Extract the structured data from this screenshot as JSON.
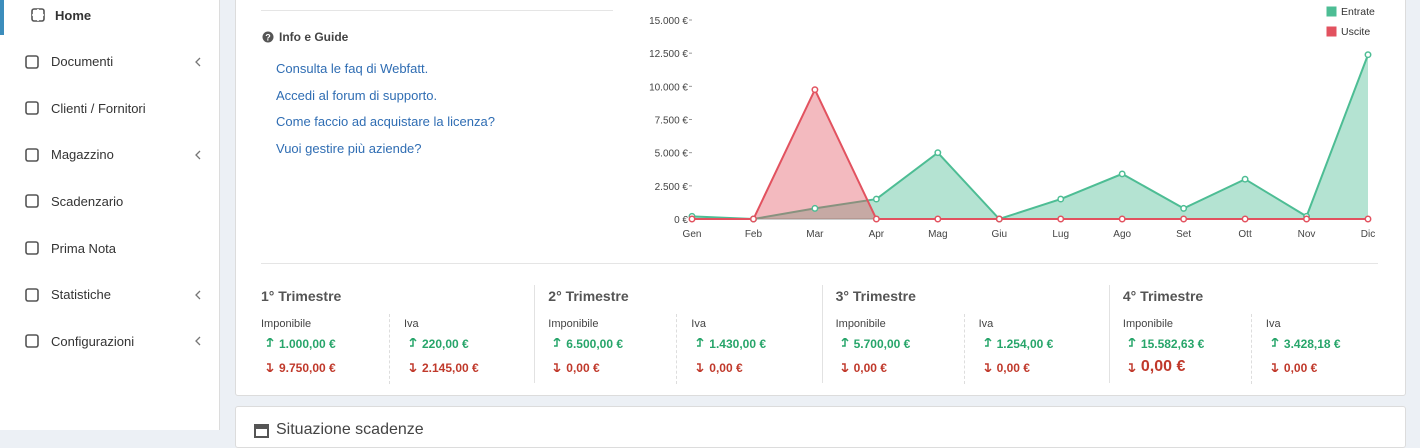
{
  "sidebar": {
    "items": [
      "Home",
      "Documenti",
      "Clienti / Fornitori",
      "Magazzino",
      "Scadenzario",
      "Prima Nota",
      "Statistiche",
      "Configurazioni"
    ]
  },
  "info": {
    "title": "Info e Guide",
    "links": [
      "Consulta le faq di Webfatt.",
      "Accedi al forum di supporto.",
      "Come faccio ad acquistare la licenza?",
      "Vuoi gestire più aziende?"
    ]
  },
  "chart_data": {
    "type": "area",
    "categories": [
      "Gen",
      "Feb",
      "Mar",
      "Apr",
      "Mag",
      "Giu",
      "Lug",
      "Ago",
      "Set",
      "Ott",
      "Nov",
      "Dic"
    ],
    "series": [
      {
        "name": "Entrate",
        "color": "#4dbd94",
        "values": [
          200,
          0,
          800,
          1500,
          5000,
          0,
          1500,
          3400,
          800,
          3000,
          200,
          12382.63
        ]
      },
      {
        "name": "Uscite",
        "color": "#e2525f",
        "values": [
          0,
          0,
          9750,
          0,
          0,
          0,
          0,
          0,
          0,
          0,
          0,
          0
        ]
      }
    ],
    "ylim": [
      0,
      15000
    ],
    "yticks": [
      {
        "value": 0,
        "label": "0 €"
      },
      {
        "value": 2500,
        "label": "2.500 €"
      },
      {
        "value": 5000,
        "label": "5.000 €"
      },
      {
        "value": 7500,
        "label": "7.500 €"
      },
      {
        "value": 10000,
        "label": "10.000 €"
      },
      {
        "value": 12500,
        "label": "12.500 €"
      },
      {
        "value": 15000,
        "label": "15.000 €"
      }
    ]
  },
  "quarters": [
    {
      "title": "1° Trimestre",
      "imponibile": {
        "label": "Imponibile",
        "up": "1.000,00 €",
        "down": "9.750,00 €"
      },
      "iva": {
        "label": "Iva",
        "up": "220,00 €",
        "down": "2.145,00 €"
      }
    },
    {
      "title": "2° Trimestre",
      "imponibile": {
        "label": "Imponibile",
        "up": "6.500,00 €",
        "down": "0,00 €"
      },
      "iva": {
        "label": "Iva",
        "up": "1.430,00 €",
        "down": "0,00 €"
      }
    },
    {
      "title": "3° Trimestre",
      "imponibile": {
        "label": "Imponibile",
        "up": "5.700,00 €",
        "down": "0,00 €"
      },
      "iva": {
        "label": "Iva",
        "up": "1.254,00 €",
        "down": "0,00 €"
      }
    },
    {
      "title": "4° Trimestre",
      "imponibile": {
        "label": "Imponibile",
        "up": "15.582,63 €",
        "down": "0,00 €"
      },
      "iva": {
        "label": "Iva",
        "up": "3.428,18 €",
        "down": "0,00 €"
      }
    }
  ],
  "next_panel": {
    "title": "Situazione scadenze"
  }
}
